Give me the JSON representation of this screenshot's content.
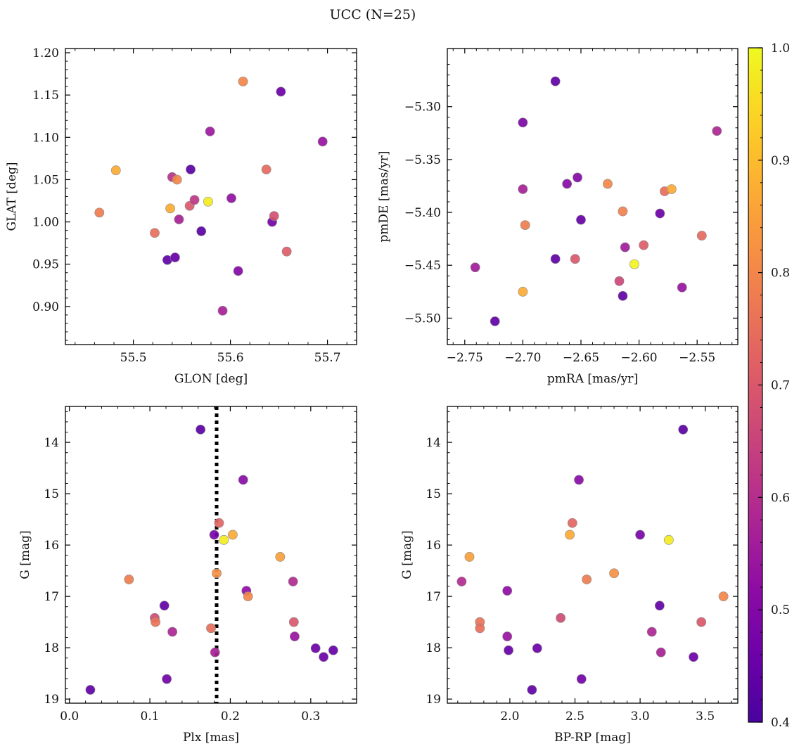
{
  "figure": {
    "title": "UCC (N=25)"
  },
  "colorbar": {
    "vmin": 0.4,
    "vmax": 1.0,
    "ticks": [
      0.4,
      0.5,
      0.6,
      0.7,
      0.8,
      0.9,
      1.0
    ],
    "tick_labels": [
      "0.4",
      "0.5",
      "0.6",
      "0.7",
      "0.8",
      "0.9",
      "1.0"
    ],
    "colormap": "plasma"
  },
  "chart_data": [
    {
      "type": "scatter",
      "id": "glon-glat",
      "xlabel": "GLON [deg]",
      "ylabel": "GLAT [deg]",
      "xlim": [
        55.43,
        55.73
      ],
      "ylim": [
        0.855,
        1.205
      ],
      "y_inverted": false,
      "xticks": [
        55.5,
        55.6,
        55.7
      ],
      "xtick_labels": [
        "55.5",
        "55.6",
        "55.7"
      ],
      "yticks": [
        0.9,
        0.95,
        1.0,
        1.05,
        1.1,
        1.15,
        1.2
      ],
      "ytick_labels": [
        "0.90",
        "0.95",
        "1.00",
        "1.05",
        "1.10",
        "1.15",
        "1.20"
      ],
      "points": [
        {
          "x": 55.465,
          "y": 1.011,
          "c": 0.78
        },
        {
          "x": 55.482,
          "y": 1.061,
          "c": 0.87
        },
        {
          "x": 55.522,
          "y": 0.987,
          "c": 0.75
        },
        {
          "x": 55.535,
          "y": 0.955,
          "c": 0.44
        },
        {
          "x": 55.538,
          "y": 1.016,
          "c": 0.87
        },
        {
          "x": 55.54,
          "y": 1.053,
          "c": 0.61
        },
        {
          "x": 55.543,
          "y": 0.958,
          "c": 0.45
        },
        {
          "x": 55.545,
          "y": 1.05,
          "c": 0.8
        },
        {
          "x": 55.547,
          "y": 1.003,
          "c": 0.57
        },
        {
          "x": 55.558,
          "y": 1.019,
          "c": 0.7
        },
        {
          "x": 55.559,
          "y": 1.062,
          "c": 0.43
        },
        {
          "x": 55.563,
          "y": 1.026,
          "c": 0.62
        },
        {
          "x": 55.57,
          "y": 0.989,
          "c": 0.43
        },
        {
          "x": 55.577,
          "y": 1.024,
          "c": 0.98
        },
        {
          "x": 55.579,
          "y": 1.107,
          "c": 0.55
        },
        {
          "x": 55.592,
          "y": 0.895,
          "c": 0.57
        },
        {
          "x": 55.601,
          "y": 1.028,
          "c": 0.53
        },
        {
          "x": 55.608,
          "y": 0.942,
          "c": 0.5
        },
        {
          "x": 55.613,
          "y": 1.166,
          "c": 0.8
        },
        {
          "x": 55.637,
          "y": 1.062,
          "c": 0.74
        },
        {
          "x": 55.643,
          "y": 1.0,
          "c": 0.47
        },
        {
          "x": 55.645,
          "y": 1.007,
          "c": 0.68
        },
        {
          "x": 55.652,
          "y": 1.154,
          "c": 0.46
        },
        {
          "x": 55.658,
          "y": 0.965,
          "c": 0.71
        },
        {
          "x": 55.695,
          "y": 1.095,
          "c": 0.54
        }
      ]
    },
    {
      "type": "scatter",
      "id": "pmra-pmde",
      "xlabel": "pmRA [mas/yr]",
      "ylabel": "pmDE [mas/yr]",
      "xlim": [
        -2.765,
        -2.515
      ],
      "ylim": [
        -5.525,
        -5.245
      ],
      "y_inverted": false,
      "xticks": [
        -2.75,
        -2.7,
        -2.65,
        -2.6,
        -2.55
      ],
      "xtick_labels": [
        "−2.75",
        "−2.70",
        "−2.65",
        "−2.60",
        "−2.55"
      ],
      "yticks": [
        -5.5,
        -5.45,
        -5.4,
        -5.35,
        -5.3
      ],
      "ytick_labels": [
        "−5.50",
        "−5.45",
        "−5.40",
        "−5.35",
        "−5.30"
      ],
      "points": [
        {
          "x": -2.741,
          "y": -5.452,
          "c": 0.56
        },
        {
          "x": -2.724,
          "y": -5.503,
          "c": 0.44
        },
        {
          "x": -2.7,
          "y": -5.315,
          "c": 0.49
        },
        {
          "x": -2.7,
          "y": -5.378,
          "c": 0.57
        },
        {
          "x": -2.7,
          "y": -5.475,
          "c": 0.87
        },
        {
          "x": -2.698,
          "y": -5.412,
          "c": 0.78
        },
        {
          "x": -2.672,
          "y": -5.276,
          "c": 0.44
        },
        {
          "x": -2.672,
          "y": -5.444,
          "c": 0.44
        },
        {
          "x": -2.662,
          "y": -5.373,
          "c": 0.51
        },
        {
          "x": -2.655,
          "y": -5.444,
          "c": 0.7
        },
        {
          "x": -2.653,
          "y": -5.367,
          "c": 0.5
        },
        {
          "x": -2.65,
          "y": -5.407,
          "c": 0.45
        },
        {
          "x": -2.627,
          "y": -5.373,
          "c": 0.8
        },
        {
          "x": -2.617,
          "y": -5.465,
          "c": 0.66
        },
        {
          "x": -2.614,
          "y": -5.479,
          "c": 0.44
        },
        {
          "x": -2.614,
          "y": -5.399,
          "c": 0.79
        },
        {
          "x": -2.612,
          "y": -5.433,
          "c": 0.56
        },
        {
          "x": -2.604,
          "y": -5.449,
          "c": 0.99
        },
        {
          "x": -2.596,
          "y": -5.431,
          "c": 0.71
        },
        {
          "x": -2.582,
          "y": -5.401,
          "c": 0.46
        },
        {
          "x": -2.578,
          "y": -5.38,
          "c": 0.75
        },
        {
          "x": -2.572,
          "y": -5.378,
          "c": 0.87
        },
        {
          "x": -2.563,
          "y": -5.471,
          "c": 0.54
        },
        {
          "x": -2.546,
          "y": -5.422,
          "c": 0.74
        },
        {
          "x": -2.533,
          "y": -5.323,
          "c": 0.58
        }
      ]
    },
    {
      "type": "scatter",
      "id": "plx-g",
      "xlabel": "Plx [mas]",
      "ylabel": "G [mag]",
      "xlim": [
        -0.005,
        0.357
      ],
      "ylim": [
        13.3,
        19.08
      ],
      "y_inverted": true,
      "xticks": [
        0.0,
        0.1,
        0.2,
        0.3
      ],
      "xtick_labels": [
        "0.0",
        "0.1",
        "0.2",
        "0.3"
      ],
      "yticks": [
        14,
        15,
        16,
        17,
        18,
        19
      ],
      "ytick_labels": [
        "14",
        "15",
        "16",
        "17",
        "18",
        "19"
      ],
      "vline": {
        "x": 0.183,
        "style": "dotted",
        "color": "#000000"
      },
      "points": [
        {
          "x": 0.026,
          "y": 18.82,
          "c": 0.44
        },
        {
          "x": 0.074,
          "y": 16.67,
          "c": 0.78
        },
        {
          "x": 0.106,
          "y": 17.42,
          "c": 0.67
        },
        {
          "x": 0.107,
          "y": 17.5,
          "c": 0.76
        },
        {
          "x": 0.118,
          "y": 17.18,
          "c": 0.44
        },
        {
          "x": 0.121,
          "y": 18.61,
          "c": 0.47
        },
        {
          "x": 0.128,
          "y": 17.69,
          "c": 0.58
        },
        {
          "x": 0.163,
          "y": 13.75,
          "c": 0.43
        },
        {
          "x": 0.176,
          "y": 17.62,
          "c": 0.75
        },
        {
          "x": 0.18,
          "y": 15.8,
          "c": 0.48
        },
        {
          "x": 0.181,
          "y": 18.09,
          "c": 0.57
        },
        {
          "x": 0.183,
          "y": 16.55,
          "c": 0.82
        },
        {
          "x": 0.186,
          "y": 15.57,
          "c": 0.73
        },
        {
          "x": 0.192,
          "y": 15.9,
          "c": 0.98
        },
        {
          "x": 0.203,
          "y": 15.8,
          "c": 0.87
        },
        {
          "x": 0.216,
          "y": 14.73,
          "c": 0.51
        },
        {
          "x": 0.22,
          "y": 16.89,
          "c": 0.52
        },
        {
          "x": 0.222,
          "y": 17.0,
          "c": 0.8
        },
        {
          "x": 0.262,
          "y": 16.23,
          "c": 0.85
        },
        {
          "x": 0.278,
          "y": 16.71,
          "c": 0.59
        },
        {
          "x": 0.279,
          "y": 17.5,
          "c": 0.7
        },
        {
          "x": 0.28,
          "y": 17.78,
          "c": 0.54
        },
        {
          "x": 0.306,
          "y": 18.01,
          "c": 0.46
        },
        {
          "x": 0.316,
          "y": 18.18,
          "c": 0.46
        },
        {
          "x": 0.328,
          "y": 18.05,
          "c": 0.45
        }
      ]
    },
    {
      "type": "scatter",
      "id": "bprp-g",
      "xlabel": "BP-RP [mag]",
      "ylabel": "G [mag]",
      "xlim": [
        1.52,
        3.75
      ],
      "ylim": [
        13.3,
        19.08
      ],
      "y_inverted": true,
      "xticks": [
        2.0,
        2.5,
        3.0,
        3.5
      ],
      "xtick_labels": [
        "2.0",
        "2.5",
        "3.0",
        "3.5"
      ],
      "yticks": [
        14,
        15,
        16,
        17,
        18,
        19
      ],
      "ytick_labels": [
        "14",
        "15",
        "16",
        "17",
        "18",
        "19"
      ],
      "points": [
        {
          "x": 1.63,
          "y": 16.71,
          "c": 0.59
        },
        {
          "x": 1.69,
          "y": 16.23,
          "c": 0.85
        },
        {
          "x": 1.77,
          "y": 17.5,
          "c": 0.76
        },
        {
          "x": 1.77,
          "y": 17.62,
          "c": 0.75
        },
        {
          "x": 1.98,
          "y": 16.89,
          "c": 0.52
        },
        {
          "x": 1.98,
          "y": 17.78,
          "c": 0.54
        },
        {
          "x": 1.99,
          "y": 18.05,
          "c": 0.45
        },
        {
          "x": 2.17,
          "y": 18.82,
          "c": 0.44
        },
        {
          "x": 2.21,
          "y": 18.01,
          "c": 0.46
        },
        {
          "x": 2.39,
          "y": 17.42,
          "c": 0.67
        },
        {
          "x": 2.46,
          "y": 15.8,
          "c": 0.87
        },
        {
          "x": 2.48,
          "y": 15.57,
          "c": 0.73
        },
        {
          "x": 2.53,
          "y": 14.73,
          "c": 0.51
        },
        {
          "x": 2.55,
          "y": 18.61,
          "c": 0.47
        },
        {
          "x": 2.59,
          "y": 16.67,
          "c": 0.78
        },
        {
          "x": 2.8,
          "y": 16.55,
          "c": 0.82
        },
        {
          "x": 3.0,
          "y": 15.8,
          "c": 0.48
        },
        {
          "x": 3.09,
          "y": 17.69,
          "c": 0.58
        },
        {
          "x": 3.15,
          "y": 17.18,
          "c": 0.44
        },
        {
          "x": 3.16,
          "y": 18.09,
          "c": 0.57
        },
        {
          "x": 3.22,
          "y": 15.9,
          "c": 0.98
        },
        {
          "x": 3.33,
          "y": 13.75,
          "c": 0.43
        },
        {
          "x": 3.41,
          "y": 18.18,
          "c": 0.46
        },
        {
          "x": 3.47,
          "y": 17.5,
          "c": 0.7
        },
        {
          "x": 3.64,
          "y": 17.0,
          "c": 0.8
        }
      ]
    }
  ]
}
